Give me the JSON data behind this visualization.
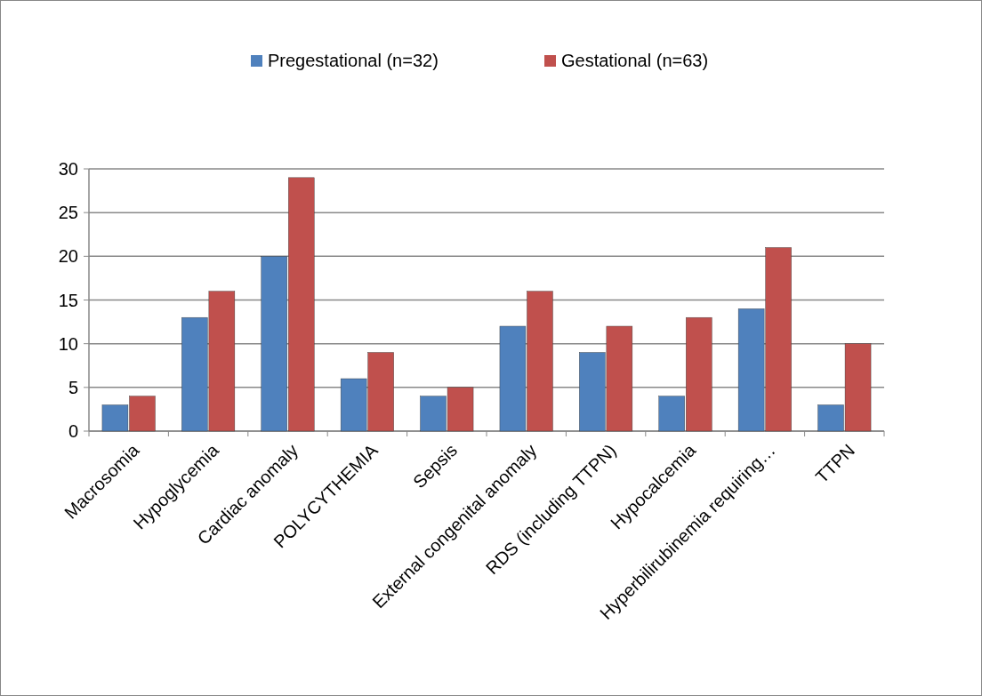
{
  "chart_data": {
    "type": "bar",
    "categories": [
      "Macrosomia",
      "Hypoglycemia",
      "Cardiac anomaly",
      "POLYCYTHEMIA",
      "Sepsis",
      "External congenital anomaly",
      "RDS (including TTPN)",
      "Hypocalcemia",
      "Hyperbilirubinemia requiring…",
      "TTPN"
    ],
    "series": [
      {
        "name": "Pregestational (n=32)",
        "color": "#4f81bd",
        "values": [
          3,
          13,
          20,
          6,
          4,
          12,
          9,
          4,
          14,
          3
        ]
      },
      {
        "name": "Gestational (n=63)",
        "color": "#c0504d",
        "values": [
          4,
          16,
          29,
          9,
          5,
          16,
          12,
          13,
          21,
          10
        ]
      }
    ],
    "ylim": [
      0,
      30
    ],
    "yticks": [
      0,
      5,
      10,
      15,
      20,
      25,
      30
    ],
    "grid": "y",
    "legend": "top"
  }
}
